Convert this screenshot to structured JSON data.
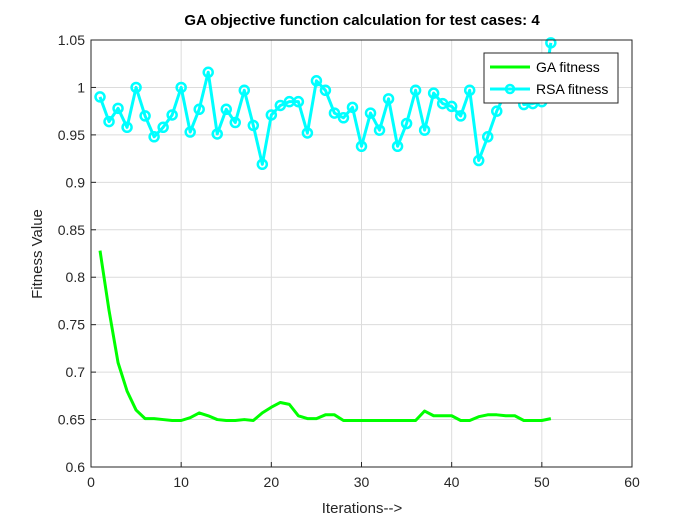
{
  "chart_data": {
    "type": "line",
    "title": "GA objective function calculation for test cases: 4",
    "xlabel": "Iterations-->",
    "ylabel": "Fitness Value",
    "xlim": [
      0,
      60
    ],
    "ylim": [
      0.6,
      1.05
    ],
    "xticks": [
      0,
      10,
      20,
      30,
      40,
      50,
      60
    ],
    "yticks": [
      0.6,
      0.65,
      0.7,
      0.75,
      0.8,
      0.85,
      0.9,
      0.95,
      1,
      1.05
    ],
    "xtick_labels": [
      "0",
      "10",
      "20",
      "30",
      "40",
      "50",
      "60"
    ],
    "ytick_labels": [
      "0.6",
      "0.65",
      "0.7",
      "0.75",
      "0.8",
      "0.85",
      "0.9",
      "0.95",
      "1",
      "1.05"
    ],
    "grid": true,
    "legend_position": "top-right",
    "x": [
      1,
      2,
      3,
      4,
      5,
      6,
      7,
      8,
      9,
      10,
      11,
      12,
      13,
      14,
      15,
      16,
      17,
      18,
      19,
      20,
      21,
      22,
      23,
      24,
      25,
      26,
      27,
      28,
      29,
      30,
      31,
      32,
      33,
      34,
      35,
      36,
      37,
      38,
      39,
      40,
      41,
      42,
      43,
      44,
      45,
      46,
      47,
      48,
      49,
      50,
      51
    ],
    "series": [
      {
        "name": "GA fitness",
        "color": "#00ff00",
        "marker": "none",
        "values": [
          0.828,
          0.765,
          0.71,
          0.68,
          0.66,
          0.651,
          0.651,
          0.65,
          0.649,
          0.649,
          0.652,
          0.657,
          0.654,
          0.65,
          0.649,
          0.649,
          0.65,
          0.649,
          0.657,
          0.663,
          0.668,
          0.666,
          0.654,
          0.651,
          0.651,
          0.655,
          0.655,
          0.649,
          0.649,
          0.649,
          0.649,
          0.649,
          0.649,
          0.649,
          0.649,
          0.649,
          0.659,
          0.654,
          0.654,
          0.654,
          0.649,
          0.649,
          0.653,
          0.655,
          0.655,
          0.654,
          0.654,
          0.649,
          0.649,
          0.649,
          0.651
        ]
      },
      {
        "name": "RSA fitness",
        "color": "#00ffff",
        "marker": "circle",
        "values": [
          0.99,
          0.964,
          0.978,
          0.958,
          1.0,
          0.97,
          0.948,
          0.958,
          0.971,
          1.0,
          0.953,
          0.977,
          1.016,
          0.951,
          0.977,
          0.963,
          0.997,
          0.96,
          0.919,
          0.971,
          0.981,
          0.985,
          0.985,
          0.952,
          1.007,
          0.997,
          0.973,
          0.968,
          0.979,
          0.938,
          0.973,
          0.955,
          0.988,
          0.938,
          0.962,
          0.997,
          0.955,
          0.994,
          0.983,
          0.98,
          0.97,
          0.997,
          0.923,
          0.948,
          0.975,
          0.995,
          1.01,
          0.982,
          0.983,
          0.985,
          1.047
        ]
      }
    ]
  }
}
